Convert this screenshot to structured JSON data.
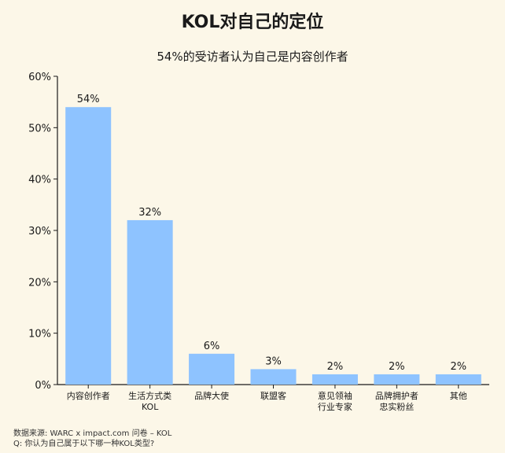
{
  "chart_data": {
    "type": "bar",
    "title": "KOL对自己的定位",
    "subtitle": "54%的受访者认为自己是内容创作者",
    "categories": [
      [
        "内容创作者"
      ],
      [
        "生活方式类",
        "KOL"
      ],
      [
        "品牌大使"
      ],
      [
        "联盟客"
      ],
      [
        "意见领袖",
        "行业专家"
      ],
      [
        "品牌拥护者",
        "忠实粉丝"
      ],
      [
        "其他"
      ]
    ],
    "values": [
      54,
      32,
      6,
      3,
      2,
      2,
      2
    ],
    "data_labels": [
      "54%",
      "32%",
      "6%",
      "3%",
      "2%",
      "2%",
      "2%"
    ],
    "ylim": [
      0,
      60
    ],
    "yticks": [
      0,
      10,
      20,
      30,
      40,
      50,
      60
    ],
    "ytick_labels": [
      "0%",
      "10%",
      "20%",
      "30%",
      "40%",
      "50%",
      "60%"
    ],
    "grid": false,
    "bar_color": "#8EC3FF"
  },
  "footer": {
    "source": "数据来源: WARC x impact.com 问卷 – KOL",
    "question": "Q: 你认为自己属于以下哪一种KOL类型?"
  }
}
